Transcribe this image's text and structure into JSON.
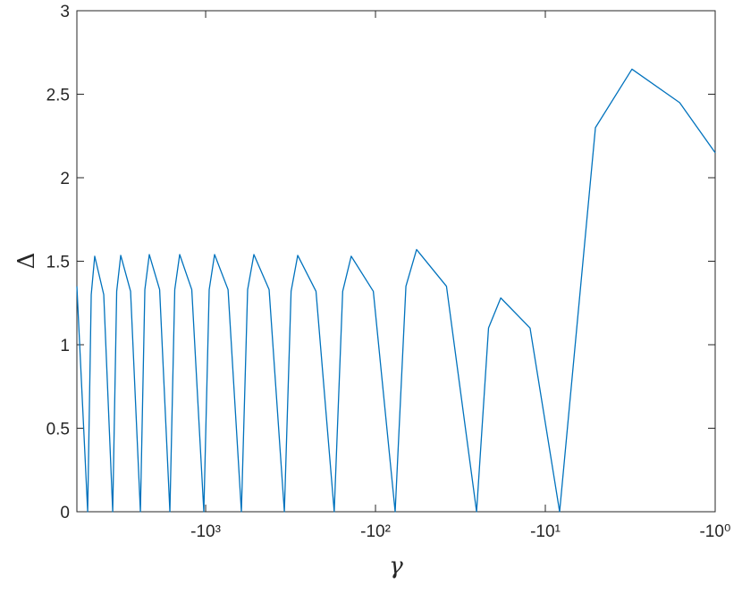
{
  "chart_data": {
    "type": "line",
    "xlabel": "γ",
    "ylabel": "Δ",
    "xscale": "log-negative",
    "color": "#0072bd",
    "x": [
      -5730,
      -4950,
      -4717,
      -4500,
      -3981,
      -3525,
      -3340,
      -3162,
      -2767,
      -2422,
      -2280,
      -2147,
      -1866,
      -1624,
      -1520,
      -1422,
      -1207,
      -1025,
      -953,
      -886,
      -738,
      -616,
      -566,
      -520,
      -423,
      -344,
      -314,
      -287,
      -224,
      -175,
      -156,
      -139,
      -103,
      -76.6,
      -66.2,
      -57.3,
      -38.2,
      -25.4,
      -21.6,
      -18.3,
      -12.3,
      -8.24,
      -5.07,
      -3.09,
      -1.62,
      -1
    ],
    "values": [
      1.35,
      0,
      1.3,
      1.53,
      1.3,
      0,
      1.32,
      1.535,
      1.32,
      0,
      1.33,
      1.54,
      1.33,
      0,
      1.33,
      1.54,
      1.33,
      0,
      1.33,
      1.54,
      1.33,
      0,
      1.33,
      1.54,
      1.33,
      0,
      1.32,
      1.535,
      1.32,
      0,
      1.32,
      1.53,
      1.32,
      0,
      1.35,
      1.57,
      1.35,
      0,
      1.1,
      1.28,
      1.1,
      0,
      2.3,
      2.65,
      2.45,
      2.15
    ],
    "xlim": [
      -5730,
      -1
    ],
    "xticks": [
      {
        "value": -1000,
        "label": "-10³"
      },
      {
        "value": -100,
        "label": "-10²"
      },
      {
        "value": -10,
        "label": "-10¹"
      },
      {
        "value": -1,
        "label": "-10⁰"
      }
    ],
    "ylim": [
      0,
      3
    ],
    "yticks": [
      0,
      0.5,
      1,
      1.5,
      2,
      2.5,
      3
    ]
  }
}
